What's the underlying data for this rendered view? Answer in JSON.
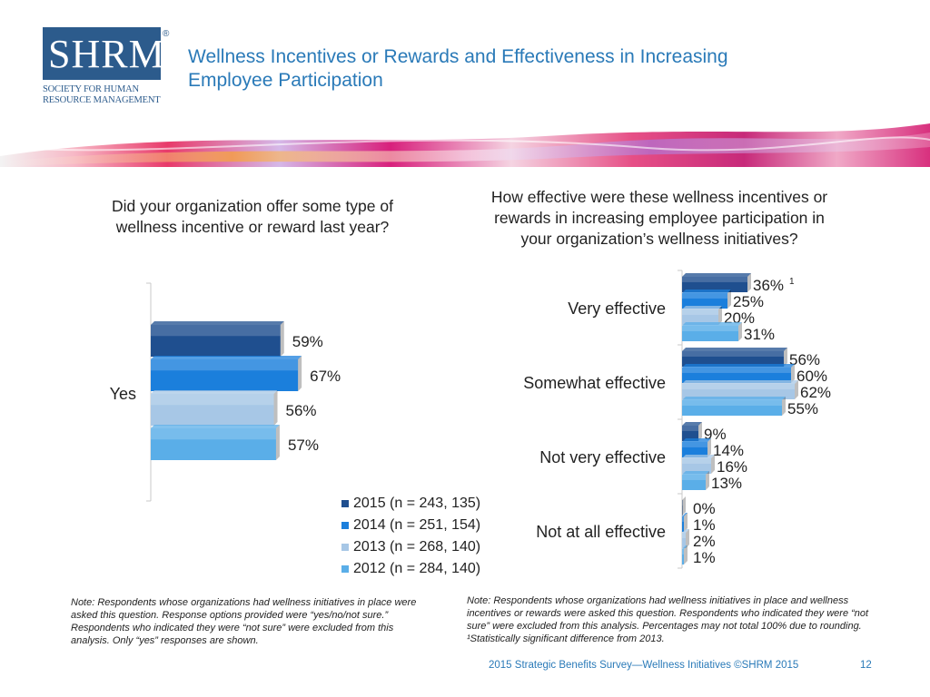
{
  "logo": {
    "text": "SHRM",
    "registered": "®",
    "subtitle_line1": "SOCIETY FOR HUMAN",
    "subtitle_line2": "RESOURCE MANAGEMENT"
  },
  "title": {
    "line1": "Wellness Incentives or Rewards and Effectiveness in Increasing",
    "line2": "Employee Participation"
  },
  "colors": {
    "s2015": "#1f4f8f",
    "s2014": "#1b7fdc",
    "s2013": "#a7c7e6",
    "s2012": "#5aaee8",
    "title": "#2a7ab8"
  },
  "chart_data": [
    {
      "type": "bar",
      "orientation": "horizontal",
      "title": "Did your organization offer some type of wellness incentive or reward last year?",
      "categories": [
        "Yes"
      ],
      "series": [
        {
          "name": "2015 (n = 243, 135)",
          "values": [
            59
          ]
        },
        {
          "name": "2014 (n = 251, 154)",
          "values": [
            67
          ]
        },
        {
          "name": "2013 (n = 268, 140)",
          "values": [
            56
          ]
        },
        {
          "name": "2012 (n = 284, 140)",
          "values": [
            57
          ]
        }
      ],
      "value_labels": [
        [
          "59%"
        ],
        [
          "67%"
        ],
        [
          "56%"
        ],
        [
          "57%"
        ]
      ],
      "xlim": [
        0,
        100
      ],
      "grid": false,
      "legend": "bottom"
    },
    {
      "type": "bar",
      "orientation": "horizontal",
      "title": "How effective were these wellness incentives or rewards in increasing employee participation in your organization’s wellness initiatives?",
      "categories": [
        "Very effective",
        "Somewhat effective",
        "Not very effective",
        "Not at all effective"
      ],
      "series": [
        {
          "name": "2015 (n = 243, 135)",
          "values": [
            36,
            56,
            9,
            0
          ]
        },
        {
          "name": "2014 (n = 251, 154)",
          "values": [
            25,
            60,
            14,
            1
          ]
        },
        {
          "name": "2013 (n = 268, 140)",
          "values": [
            20,
            62,
            16,
            2
          ]
        },
        {
          "name": "2012 (n = 284, 140)",
          "values": [
            31,
            55,
            13,
            1
          ]
        }
      ],
      "value_labels": [
        [
          "36%",
          "56%",
          "9%",
          "0%"
        ],
        [
          "25%",
          "60%",
          "14%",
          "1%"
        ],
        [
          "20%",
          "62%",
          "16%",
          "2%"
        ],
        [
          "31%",
          "55%",
          "13%",
          "1%"
        ]
      ],
      "annotation": {
        "text": "1",
        "category": "Very effective",
        "series": "2015 (n = 243, 135)"
      },
      "xlim": [
        0,
        100
      ],
      "grid": false
    }
  ],
  "left_question": {
    "line1": "Did your organization offer some type of",
    "line2": "wellness incentive or reward last year?"
  },
  "right_question": {
    "line1": "How effective were these wellness incentives or",
    "line2": "rewards in increasing employee participation in",
    "line3": "your organization’s wellness initiatives?"
  },
  "legend": [
    "2015 (n = 243, 135)",
    "2014 (n = 251, 154)",
    "2013 (n = 268, 140)",
    "2012 (n = 284, 140)"
  ],
  "note_left": "Note: Respondents whose organizations had wellness initiatives in place were asked this question. Response options provided were “yes/no/not sure.” Respondents who indicated they were “not sure” were excluded from this analysis. Only “yes” responses are shown.",
  "note_right": "Note: Respondents whose organizations had wellness initiatives in place and wellness incentives or rewards were asked this question. Respondents who indicated they were “not sure” were excluded from this analysis. Percentages may not total 100% due to rounding. ¹Statistically significant difference from 2013.",
  "footer": "2015 Strategic Benefits Survey—Wellness Initiatives ©SHRM 2015",
  "page_number": "12"
}
